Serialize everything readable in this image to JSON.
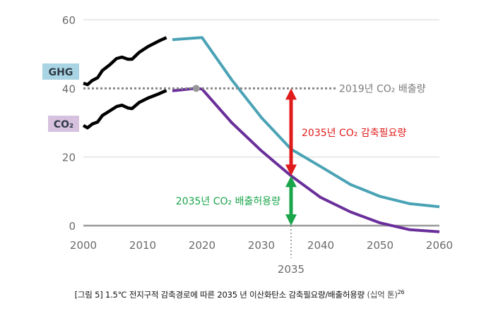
{
  "chart_data": {
    "type": "line",
    "title": "",
    "xlabel": "",
    "ylabel": "",
    "xlim": [
      2000,
      2060
    ],
    "ylim": [
      0,
      60
    ],
    "x_ticks": [
      2000,
      2010,
      2020,
      2030,
      2040,
      2050,
      2060
    ],
    "x_tick_labels": [
      "2000",
      "2010",
      "2020",
      "2030",
      "2040",
      "2050",
      "2060"
    ],
    "y_ticks": [
      0,
      20,
      40,
      60
    ],
    "y_tick_labels": [
      "0",
      "20",
      "40",
      "60"
    ],
    "grid": "horizontal",
    "extra_x_marker": {
      "x": 2035,
      "label": "2035"
    },
    "series": [
      {
        "name": "GHG (historical)",
        "color": "#000000",
        "x": [
          2000,
          2000.7,
          2001.5,
          2002.4,
          2003.2,
          2004.4,
          2005.6,
          2006.5,
          2007.5,
          2008.2,
          2009.4,
          2010.9,
          2012.7,
          2014
        ],
        "y": [
          41.5,
          41.1,
          42.3,
          43.1,
          45.2,
          46.8,
          48.7,
          49.1,
          48.5,
          48.5,
          50.5,
          52.2,
          53.8,
          54.8
        ]
      },
      {
        "name": "CO2 (historical)",
        "color": "#000000",
        "x": [
          2000,
          2000.7,
          2001.5,
          2002.4,
          2003.2,
          2004.4,
          2005.6,
          2006.5,
          2007.5,
          2008.2,
          2009.4,
          2010.9,
          2012.7,
          2014
        ],
        "y": [
          29.2,
          28.5,
          29.6,
          30.2,
          32.1,
          33.4,
          34.7,
          35.1,
          34.3,
          34.1,
          35.9,
          37.2,
          38.4,
          39.4
        ]
      },
      {
        "name": "GHG pathway",
        "color": "#4aa3b5",
        "x": [
          2015,
          2020,
          2025,
          2030,
          2035,
          2040,
          2045,
          2050,
          2055,
          2060
        ],
        "y": [
          54.2,
          54.8,
          42.5,
          31.5,
          22.3,
          17.2,
          12.0,
          8.5,
          6.4,
          5.5
        ]
      },
      {
        "name": "CO2 pathway",
        "color": "#6a2f9a",
        "x": [
          2015,
          2019,
          2020,
          2025,
          2030,
          2035,
          2040,
          2045,
          2050,
          2055,
          2060
        ],
        "y": [
          39.3,
          40.0,
          39.8,
          30.0,
          21.8,
          14.5,
          8.2,
          4.0,
          0.8,
          -1.2,
          -1.8
        ]
      },
      {
        "name": "2019년 CO2 배출량",
        "color": "#888888",
        "style": "dotted",
        "x": [
          2000,
          2060
        ],
        "y": [
          40,
          40
        ]
      }
    ],
    "point_marker": {
      "x": 2019,
      "y": 40,
      "color": "#999999"
    },
    "annotations": [
      {
        "text": "2019년 CO₂ 배출량",
        "color": "#7a7a7a"
      },
      {
        "text": "2035년 CO₂ 감축필요량",
        "color": "#e01b1b",
        "arrow_from": 40,
        "arrow_to": 14.5,
        "x": 2035
      },
      {
        "text": "2035년 CO₂ 배출허용량",
        "color": "#1aa54b",
        "arrow_from": 14.5,
        "arrow_to": 0,
        "x": 2035
      }
    ],
    "series_labels": [
      {
        "text": "GHG",
        "bg": "#a8d4e3"
      },
      {
        "text": "CO₂",
        "bg": "#d6c1de"
      }
    ]
  },
  "caption": {
    "main": "[그림 5] 1.5℃ 전지구적 감축경로에 따른 2035 년 이산화탄소 감축필요량/배출허용량",
    "unit": "(십억 톤)",
    "footnote": "26"
  }
}
